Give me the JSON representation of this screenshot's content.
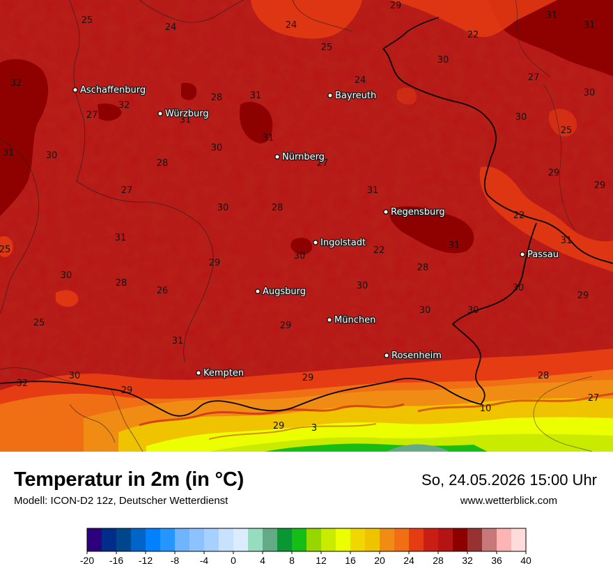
{
  "header": {
    "title": "Temperatur in 2m (in °C)",
    "model": "Modell: ICON-D2 12z, Deutscher Wetterdienst",
    "datetime": "So, 24.05.2026 15:00 Uhr",
    "website": "www.wetterblick.com"
  },
  "cities": [
    {
      "name": "Aschaffenburg"
    },
    {
      "name": "Würzburg"
    },
    {
      "name": "Bayreuth"
    },
    {
      "name": "Nürnberg"
    },
    {
      "name": "Regensburg"
    },
    {
      "name": "Ingolstadt"
    },
    {
      "name": "Passau"
    },
    {
      "name": "Augsburg"
    },
    {
      "name": "München"
    },
    {
      "name": "Rosenheim"
    },
    {
      "name": "Kempten"
    }
  ],
  "temperature_labels": [
    "25",
    "24",
    "24",
    "25",
    "29",
    "31",
    "31",
    "22",
    "32",
    "32",
    "27",
    "28",
    "31",
    "30",
    "24",
    "27",
    "31",
    "31",
    "30",
    "31",
    "30",
    "28",
    "27",
    "31",
    "25",
    "30",
    "30",
    "27",
    "30",
    "28",
    "31",
    "29",
    "29",
    "31",
    "31",
    "22",
    "25",
    "30",
    "30",
    "31",
    "22",
    "28",
    "28",
    "26",
    "29",
    "30",
    "30",
    "25",
    "29",
    "30",
    "30",
    "29",
    "31",
    "30",
    "32",
    "29",
    "10",
    "28",
    "27",
    "29",
    "29",
    "3"
  ],
  "legend": {
    "ticks": [
      "-20",
      "-16",
      "-12",
      "-8",
      "-4",
      "0",
      "4",
      "8",
      "12",
      "16",
      "20",
      "24",
      "28",
      "32",
      "36",
      "40"
    ],
    "colors": [
      "#2d007d",
      "#002d8a",
      "#00468a",
      "#0064c8",
      "#0082ff",
      "#2596ff",
      "#6eb4ff",
      "#8cc3ff",
      "#a5d0ff",
      "#c8e1ff",
      "#dcecff",
      "#96dcbe",
      "#64aa87",
      "#0a9632",
      "#14be14",
      "#96d700",
      "#c8eb00",
      "#ebff00",
      "#f0d700",
      "#f0c300",
      "#f08c14",
      "#f06e14",
      "#e63c14",
      "#c81e14",
      "#b41414",
      "#8c0000",
      "#963232",
      "#c87878",
      "#ffb4b4",
      "#ffdcdc"
    ]
  }
}
